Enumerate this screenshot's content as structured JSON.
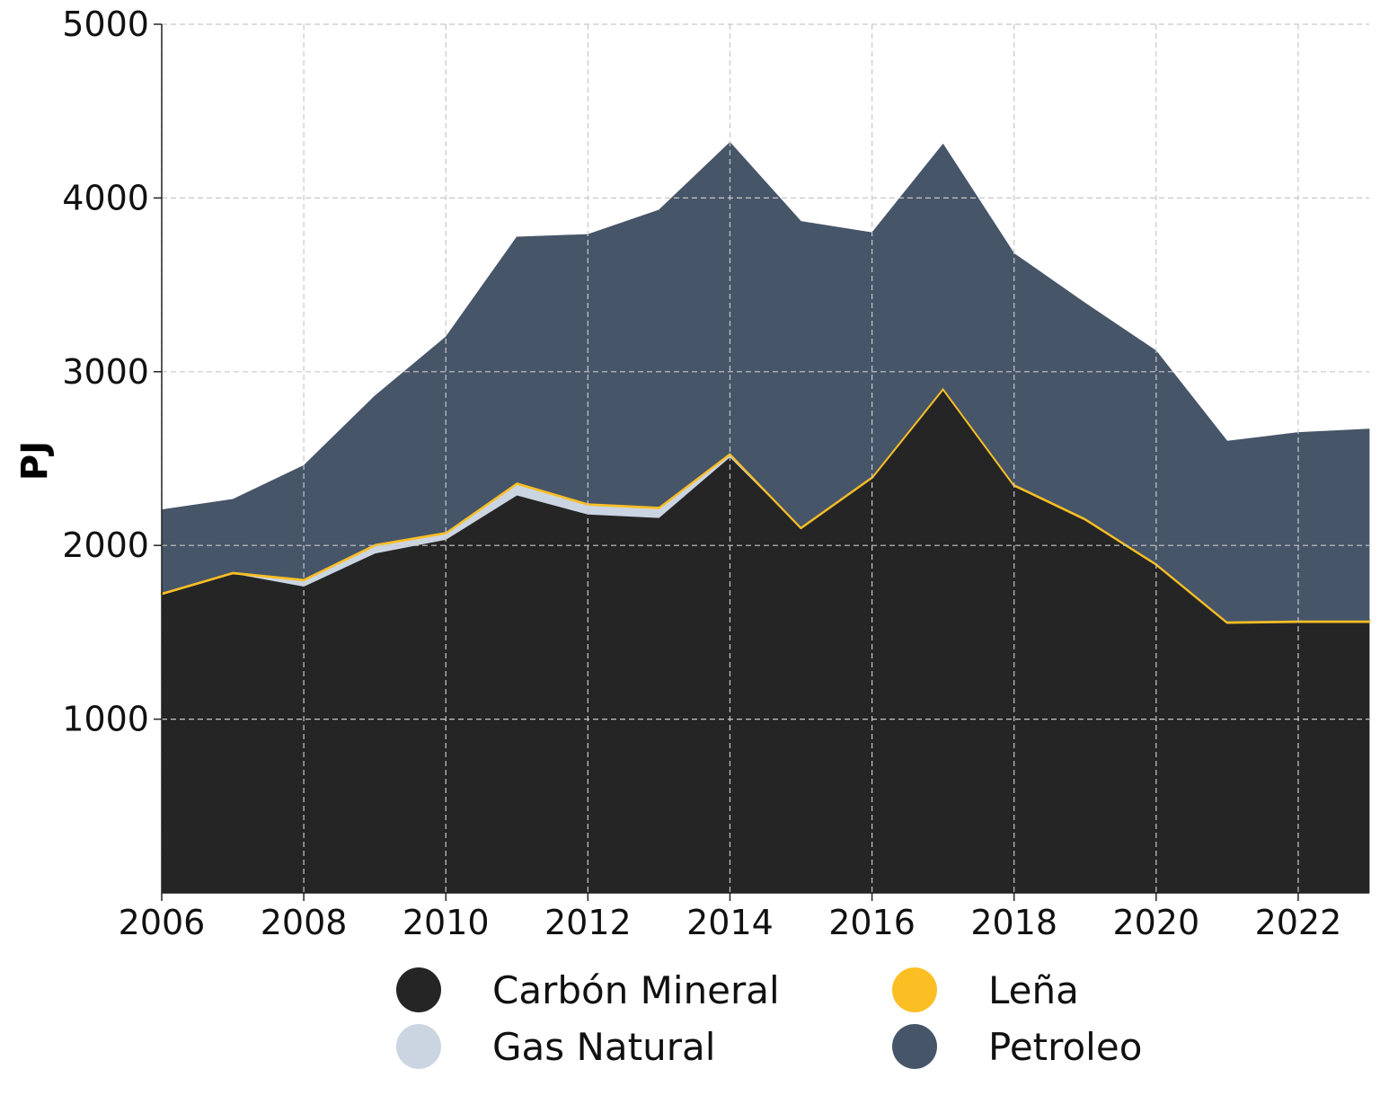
{
  "chart_data": {
    "type": "area",
    "stacked": true,
    "ylabel": "PJ",
    "xlabel": "",
    "xlim": [
      2006,
      2023
    ],
    "ylim": [
      0,
      5000
    ],
    "x_ticks": [
      2006,
      2008,
      2010,
      2012,
      2014,
      2016,
      2018,
      2020,
      2022
    ],
    "y_ticks": [
      1000,
      2000,
      3000,
      4000,
      5000
    ],
    "grid": true,
    "legend_position": "bottom",
    "x": [
      2006,
      2007,
      2008,
      2009,
      2010,
      2011,
      2012,
      2013,
      2014,
      2015,
      2016,
      2017,
      2018,
      2019,
      2020,
      2021,
      2022,
      2023
    ],
    "series": [
      {
        "name": "Carbón Mineral",
        "color": "#252525",
        "values": [
          1720,
          1840,
          1765,
          1955,
          2035,
          2290,
          2180,
          2160,
          2510,
          2100,
          2390,
          2900,
          2345,
          2150,
          1890,
          1555,
          1560,
          1560
        ]
      },
      {
        "name": "Gas Natural",
        "color": "#cbd5e1",
        "values": [
          0,
          0,
          35,
          45,
          35,
          65,
          55,
          55,
          15,
          0,
          0,
          0,
          0,
          0,
          0,
          0,
          0,
          0
        ]
      },
      {
        "name": "Leña",
        "color": "#fbbf24",
        "values": [
          10,
          10,
          10,
          10,
          10,
          10,
          10,
          10,
          10,
          10,
          10,
          10,
          10,
          10,
          10,
          10,
          10,
          10
        ]
      },
      {
        "name": "Petroleo",
        "color": "#475569",
        "values": [
          475,
          415,
          650,
          850,
          1120,
          1410,
          1545,
          1705,
          1785,
          1755,
          1400,
          1400,
          1325,
          1235,
          1220,
          1035,
          1080,
          1100
        ]
      }
    ]
  }
}
